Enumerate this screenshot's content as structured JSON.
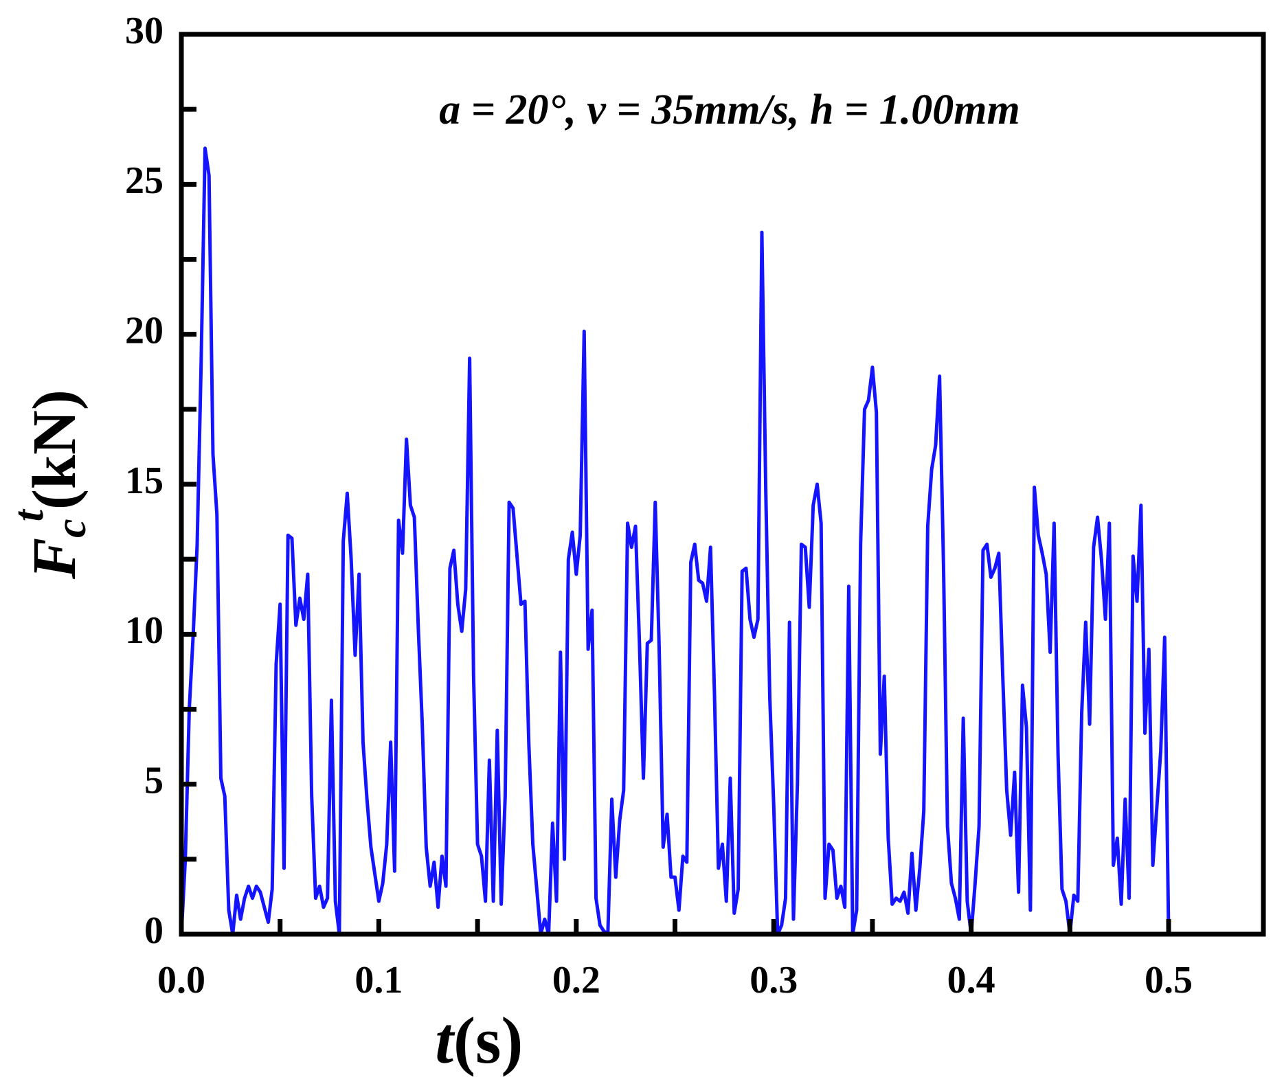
{
  "chart_data": {
    "type": "line",
    "annotation": "a = 20°, v = 35mm/s, h = 1.00mm",
    "xlabel": {
      "symbol": "t",
      "unit": "(s)"
    },
    "ylabel": {
      "symbol": "F",
      "subscript": "c",
      "superscript": "t",
      "unit": "(kN)"
    },
    "color": "#1414ff",
    "xlim": [
      0,
      0.548
    ],
    "ylim": [
      0,
      30
    ],
    "xticks": [
      {
        "value": 0,
        "label": "0.0"
      },
      0.1,
      0.2,
      0.3,
      0.4,
      0.5
    ],
    "xminorticks": [
      0.05,
      0.15,
      0.25,
      0.35,
      0.45
    ],
    "yticks": [
      0,
      5,
      10,
      15,
      20,
      25,
      30
    ],
    "yminorticks": [
      2.5,
      7.5,
      12.5,
      17.5,
      22.5,
      27.5
    ],
    "x": [
      0,
      0.002,
      0.004,
      0.006,
      0.008,
      0.01,
      0.012,
      0.014,
      0.016,
      0.018,
      0.02,
      0.022,
      0.024,
      0.026,
      0.028,
      0.03,
      0.032,
      0.034,
      0.036,
      0.038,
      0.04,
      0.042,
      0.044,
      0.046,
      0.048,
      0.05,
      0.052,
      0.054,
      0.056,
      0.058,
      0.06,
      0.062,
      0.064,
      0.066,
      0.068,
      0.07,
      0.072,
      0.074,
      0.076,
      0.078,
      0.08,
      0.082,
      0.084,
      0.086,
      0.088,
      0.09,
      0.092,
      0.094,
      0.096,
      0.098,
      0.1,
      0.102,
      0.104,
      0.106,
      0.108,
      0.11,
      0.112,
      0.114,
      0.116,
      0.118,
      0.12,
      0.122,
      0.124,
      0.126,
      0.128,
      0.13,
      0.132,
      0.134,
      0.136,
      0.138,
      0.14,
      0.142,
      0.144,
      0.146,
      0.148,
      0.15,
      0.152,
      0.154,
      0.156,
      0.158,
      0.16,
      0.162,
      0.164,
      0.166,
      0.168,
      0.17,
      0.172,
      0.174,
      0.176,
      0.178,
      0.18,
      0.182,
      0.184,
      0.186,
      0.188,
      0.19,
      0.192,
      0.194,
      0.196,
      0.198,
      0.2,
      0.202,
      0.204,
      0.206,
      0.208,
      0.21,
      0.212,
      0.214,
      0.216,
      0.218,
      0.22,
      0.222,
      0.224,
      0.226,
      0.228,
      0.23,
      0.232,
      0.234,
      0.236,
      0.238,
      0.24,
      0.242,
      0.244,
      0.246,
      0.248,
      0.25,
      0.252,
      0.254,
      0.256,
      0.258,
      0.26,
      0.262,
      0.264,
      0.266,
      0.268,
      0.27,
      0.272,
      0.274,
      0.276,
      0.278,
      0.28,
      0.282,
      0.284,
      0.286,
      0.288,
      0.29,
      0.292,
      0.294,
      0.296,
      0.298,
      0.3,
      0.302,
      0.304,
      0.306,
      0.308,
      0.31,
      0.312,
      0.314,
      0.316,
      0.318,
      0.32,
      0.322,
      0.324,
      0.326,
      0.328,
      0.33,
      0.332,
      0.334,
      0.336,
      0.338,
      0.34,
      0.342,
      0.344,
      0.346,
      0.348,
      0.35,
      0.352,
      0.354,
      0.356,
      0.358,
      0.36,
      0.362,
      0.364,
      0.366,
      0.368,
      0.37,
      0.372,
      0.374,
      0.376,
      0.378,
      0.38,
      0.382,
      0.384,
      0.386,
      0.388,
      0.39,
      0.392,
      0.394,
      0.396,
      0.398,
      0.4,
      0.402,
      0.404,
      0.406,
      0.408,
      0.41,
      0.412,
      0.414,
      0.416,
      0.418,
      0.42,
      0.422,
      0.424,
      0.426,
      0.428,
      0.43,
      0.432,
      0.434,
      0.436,
      0.438,
      0.44,
      0.442,
      0.444,
      0.446,
      0.448,
      0.45,
      0.452,
      0.454,
      0.456,
      0.458,
      0.46,
      0.462,
      0.464,
      0.466,
      0.468,
      0.47,
      0.472,
      0.474,
      0.476,
      0.478,
      0.48,
      0.482,
      0.484,
      0.486,
      0.488,
      0.49,
      0.492,
      0.494,
      0.496,
      0.498,
      0.5
    ],
    "values": [
      0,
      2.5,
      7.5,
      10,
      13,
      19,
      26.2,
      25.3,
      16,
      14,
      5.2,
      4.6,
      0.8,
      0,
      1.3,
      0.5,
      1.2,
      1.6,
      1.2,
      1.6,
      1.4,
      0.9,
      0.4,
      1.5,
      9,
      11,
      2.2,
      13.3,
      13.2,
      10.3,
      11.2,
      10.5,
      12,
      4.6,
      1.2,
      1.6,
      0.9,
      1.2,
      7.8,
      1.1,
      0,
      13.1,
      14.7,
      12.5,
      9.3,
      12,
      6.4,
      4.5,
      2.9,
      2,
      1.1,
      1.7,
      3,
      6.4,
      2.1,
      13.8,
      12.7,
      16.5,
      14.3,
      13.9,
      10.2,
      7,
      2.9,
      1.6,
      2.4,
      0.9,
      2.6,
      1.6,
      12.2,
      12.8,
      11,
      10.1,
      11.5,
      19.2,
      8.6,
      3,
      2.6,
      1.1,
      5.8,
      1.1,
      6.8,
      1,
      4.6,
      14.4,
      14.2,
      12.6,
      11,
      11.1,
      6.3,
      3,
      1.5,
      0,
      0.5,
      0,
      3.7,
      1.1,
      9.4,
      2.5,
      12.5,
      13.4,
      12,
      13.3,
      20.1,
      9.5,
      10.8,
      1.2,
      0.3,
      0.1,
      0,
      4.5,
      1.9,
      3.8,
      4.8,
      13.7,
      12.9,
      13.6,
      9.7,
      5.2,
      9.7,
      9.8,
      14.4,
      9.5,
      2.9,
      4,
      1.9,
      1.9,
      0.8,
      2.6,
      2.4,
      12.4,
      13,
      11.8,
      11.7,
      11.1,
      12.9,
      8,
      2.2,
      3,
      1.1,
      5.2,
      0.7,
      1.5,
      12.1,
      12.2,
      10.5,
      9.9,
      10.5,
      23.4,
      14.7,
      7.9,
      4.3,
      0,
      0.3,
      1.2,
      10.4,
      0.5,
      5,
      13,
      12.9,
      10.9,
      14.3,
      15,
      13.7,
      1.2,
      3,
      2.8,
      1.2,
      1.6,
      0.9,
      11.6,
      0,
      0.8,
      13,
      17.5,
      17.8,
      18.9,
      17.4,
      6,
      8.6,
      3.2,
      1,
      1.2,
      1.1,
      1.4,
      0.7,
      2.7,
      0.8,
      2.2,
      4.1,
      13.6,
      15.5,
      16.3,
      18.6,
      12.3,
      3.6,
      1.7,
      1.2,
      0.5,
      7.2,
      1.1,
      0,
      1.7,
      3.6,
      12.8,
      13,
      11.9,
      12.2,
      12.7,
      8.6,
      4.8,
      3.3,
      5.4,
      1.4,
      8.3,
      6.9,
      0.8,
      14.9,
      13.3,
      12.7,
      12,
      9.4,
      13.7,
      6,
      1.5,
      1.1,
      0,
      1.3,
      1.1,
      7.4,
      10.4,
      7,
      12.9,
      13.9,
      12.5,
      10.5,
      13.7,
      2.3,
      3.2,
      1,
      4.5,
      1.2,
      12.6,
      11.1,
      14.3,
      6.7,
      9.5,
      2.3,
      4.2,
      6.1,
      9.9,
      0
    ]
  }
}
